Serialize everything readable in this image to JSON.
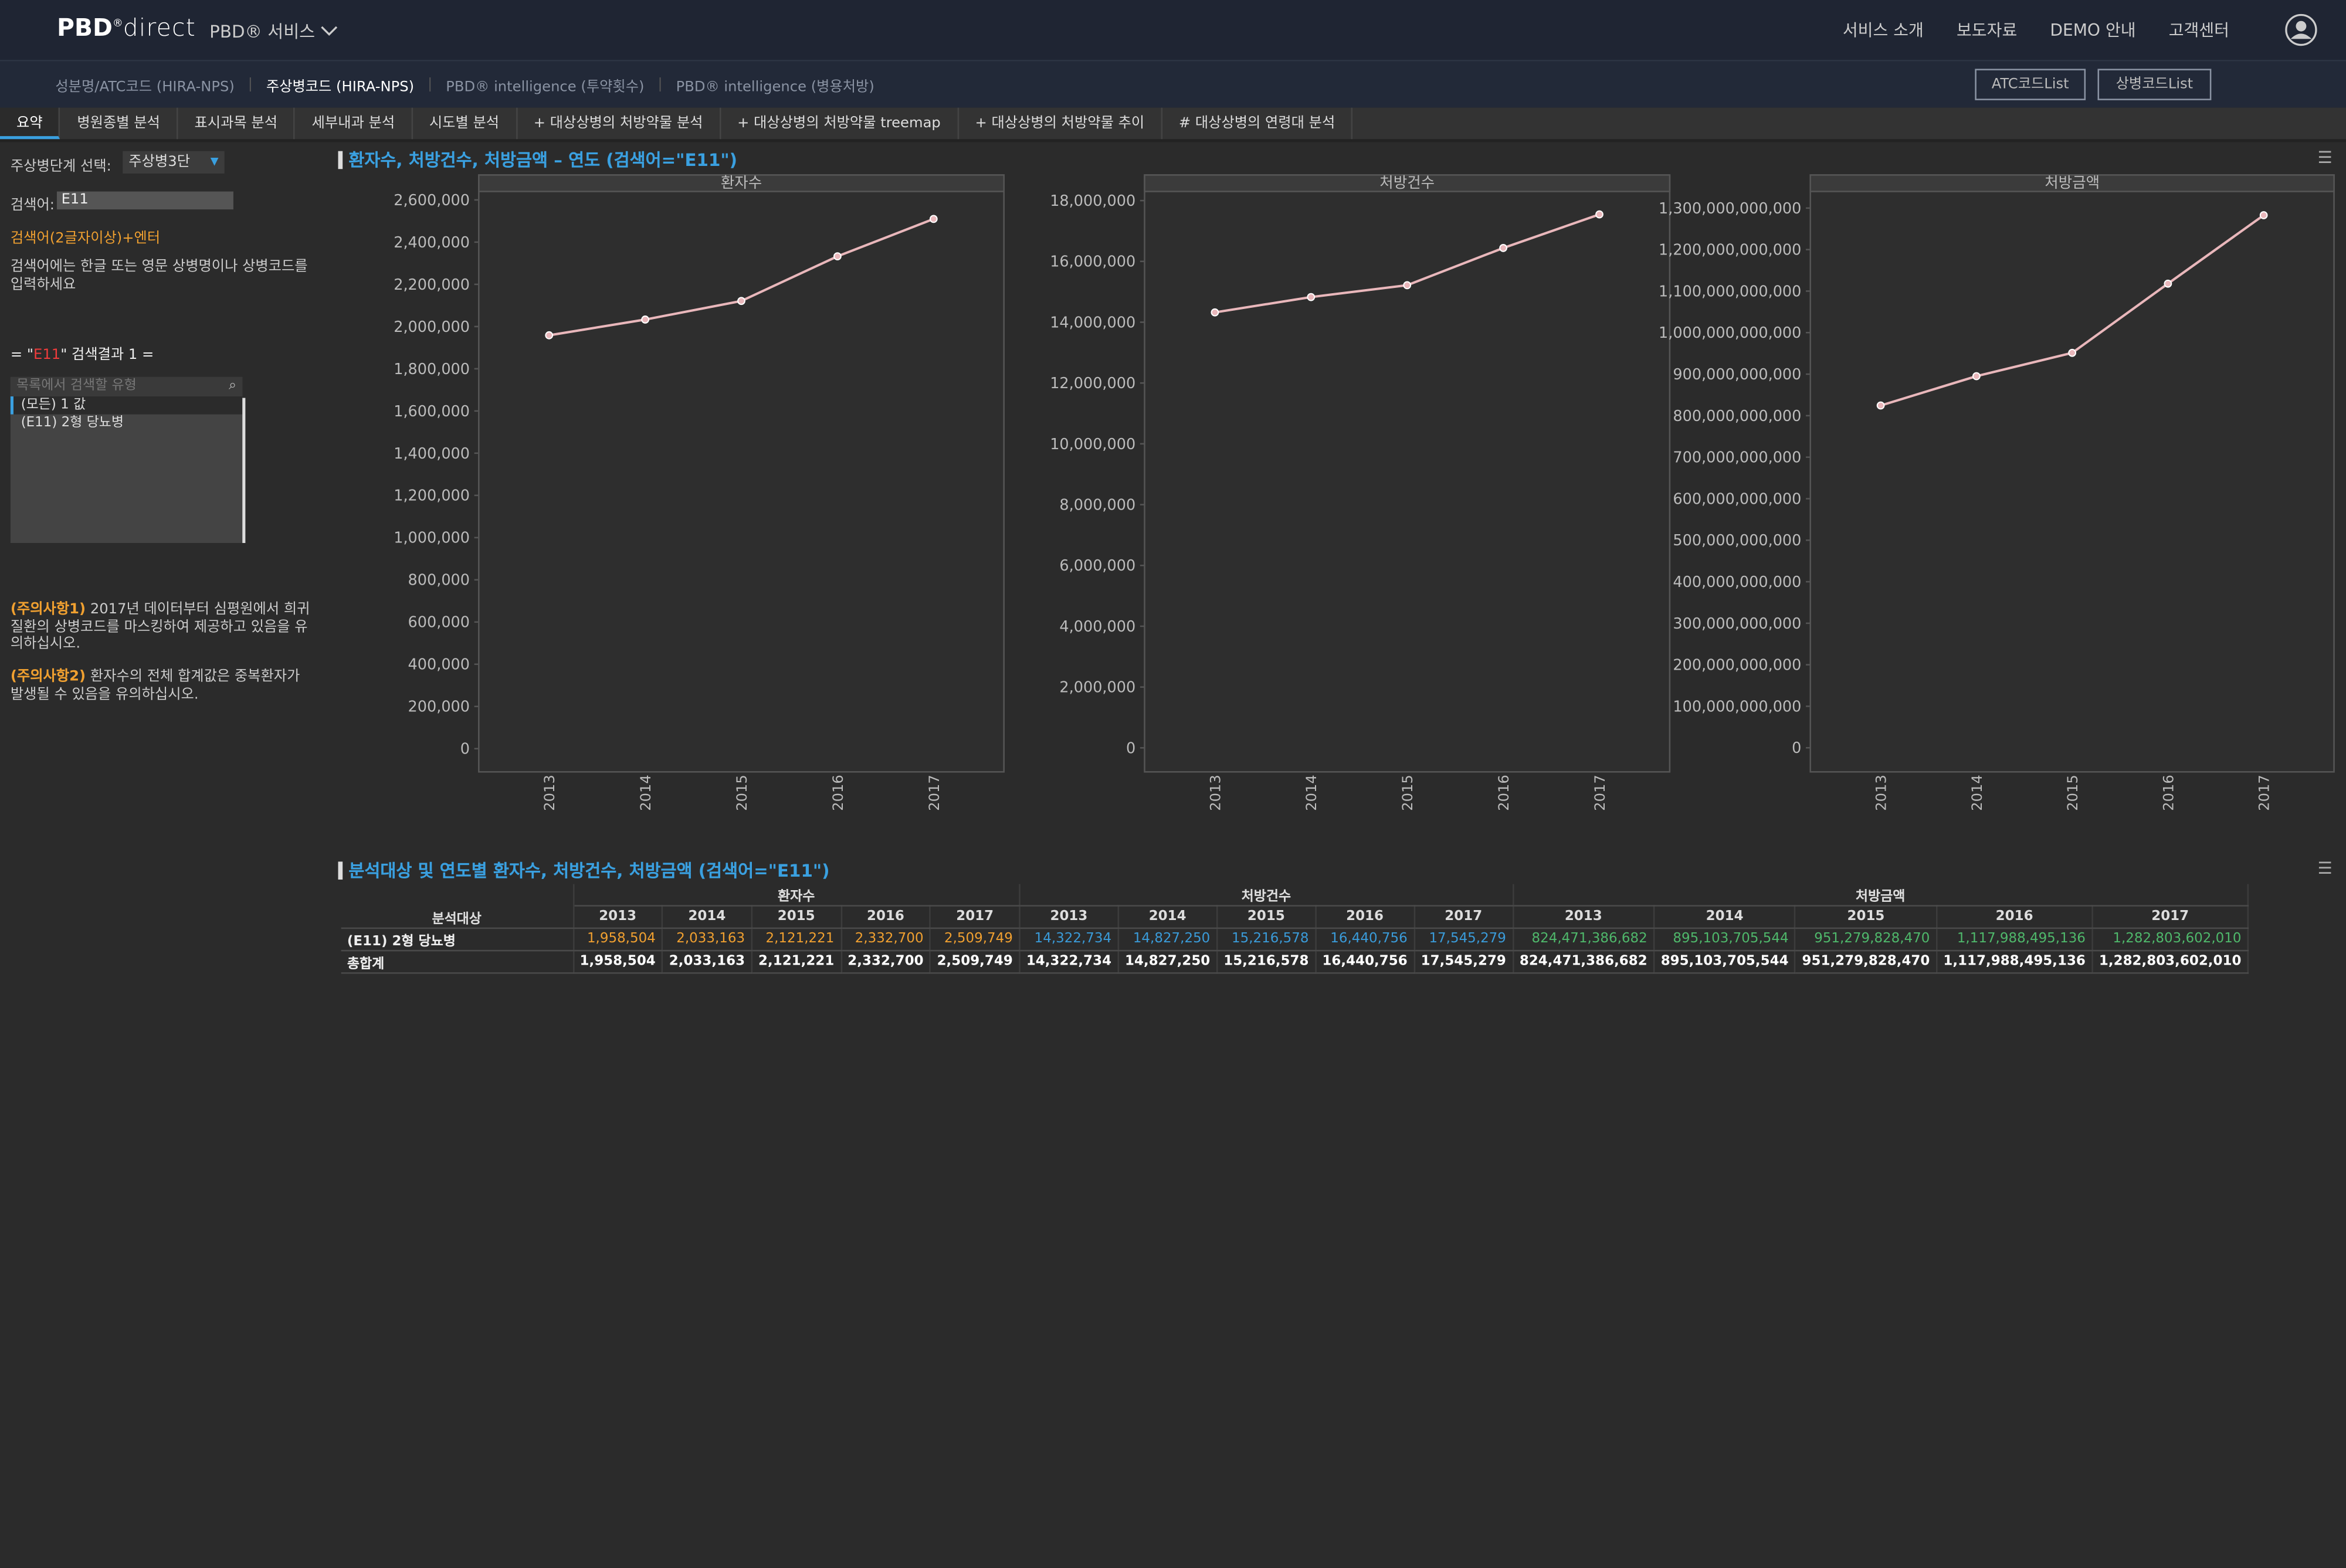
{
  "header": {
    "logo_brand": "PBD",
    "logo_mark": "®",
    "logo_product": "direct",
    "service_menu": "PBD® 서비스",
    "nav": [
      "서비스 소개",
      "보도자료",
      "DEMO 안내",
      "고객센터"
    ]
  },
  "subnav": {
    "items": [
      "성분명/ATC코드 (HIRA-NPS)",
      "주상병코드 (HIRA-NPS)",
      "PBD® intelligence (투약횟수)",
      "PBD® intelligence (병용처방)"
    ],
    "active": 1,
    "buttons": [
      "ATC코드List",
      "상병코드List"
    ]
  },
  "tabs": {
    "items": [
      "요약",
      "병원종별 분석",
      "표시과목 분석",
      "세부내과 분석",
      "시도별 분석",
      "+ 대상상병의 처방약물 분석",
      "+ 대상상병의 처방약물 treemap",
      "+ 대상상병의 처방약물 추이",
      "# 대상상병의 연령대 분석"
    ],
    "active": 0
  },
  "sidebar": {
    "stage_label": "주상병단계 선택:",
    "stage_value": "주상병3단",
    "search_label": "검색어:",
    "search_value": "E11",
    "hint1": "검색어(2글자이상)+엔터",
    "hint2": "검색어에는 한글 또는 영문 상병명이나 상병코드를 입력하세요",
    "result_prefix": "= \"",
    "result_term": "E11",
    "result_suffix": "\" 검색결과 1 =",
    "list_placeholder": "목록에서 검색할 유형",
    "list_items": [
      "(모든) 1 값",
      "(E11) 2형 당뇨병"
    ],
    "notes": [
      {
        "tag": "(주의사항1)",
        "text": "2017년 데이터부터 심평원에서 희귀질환의 상병코드를 마스킹하여 제공하고 있음을 유의하십시오."
      },
      {
        "tag": "(주의사항2)",
        "text": "환자수의 전체 합계값은 중복환자가 발생될 수 있음을 유의하십시오."
      }
    ]
  },
  "charts_title": "환자수, 처방건수, 처방금액 – 연도 (검색어=\"E11\")",
  "table_title": "분석대상 및 연도별 환자수, 처방건수, 처방금액 (검색어=\"E11\")",
  "chart_data": [
    {
      "type": "line",
      "title": "환자수",
      "categories": [
        "2013",
        "2014",
        "2015",
        "2016",
        "2017"
      ],
      "values": [
        1958504,
        2033163,
        2121221,
        2332700,
        2509749
      ],
      "color": "#e9b7bb",
      "ylim": [
        -110000,
        2640000
      ],
      "yticks": [
        0,
        {
          "value": 200000,
          "label": "200,000"
        },
        {
          "value": 400000,
          "label": "400,000"
        },
        {
          "value": 600000,
          "label": "600,000"
        },
        {
          "value": 800000,
          "label": "800,000"
        },
        {
          "value": 1000000,
          "label": "1,000,000"
        },
        {
          "value": 1200000,
          "label": "1,200,000"
        },
        {
          "value": 1400000,
          "label": "1,400,000"
        },
        {
          "value": 1600000,
          "label": "1,600,000"
        },
        {
          "value": 1800000,
          "label": "1,800,000"
        },
        {
          "value": 2000000,
          "label": "2,000,000"
        },
        {
          "value": 2200000,
          "label": "2,200,000"
        },
        {
          "value": 2400000,
          "label": "2,400,000"
        },
        {
          "value": 2600000,
          "label": "2,600,000"
        }
      ]
    },
    {
      "type": "line",
      "title": "처방건수",
      "categories": [
        "2013",
        "2014",
        "2015",
        "2016",
        "2017"
      ],
      "values": [
        14322734,
        14827250,
        15216578,
        16440756,
        17545279
      ],
      "color": "#e9b7bb",
      "ylim": [
        -790000,
        18300000
      ],
      "yticks": [
        0,
        {
          "value": 2000000,
          "label": "2,000,000"
        },
        {
          "value": 4000000,
          "label": "4,000,000"
        },
        {
          "value": 6000000,
          "label": "6,000,000"
        },
        {
          "value": 8000000,
          "label": "8,000,000"
        },
        {
          "value": 10000000,
          "label": "10,000,000"
        },
        {
          "value": 12000000,
          "label": "12,000,000"
        },
        {
          "value": 14000000,
          "label": "14,000,000"
        },
        {
          "value": 16000000,
          "label": "16,000,000"
        },
        {
          "value": 18000000,
          "label": "18,000,000"
        }
      ]
    },
    {
      "type": "line",
      "title": "처방금액",
      "categories": [
        "2013",
        "2014",
        "2015",
        "2016",
        "2017"
      ],
      "values": [
        824471386682,
        895103705544,
        951279828470,
        1117988495136,
        1282803602010
      ],
      "color": "#e9b7bb",
      "ylim": [
        -58000000000,
        1340000000000
      ],
      "yticks": [
        0,
        {
          "value": 100000000000,
          "label": "100,000,000,000"
        },
        {
          "value": 200000000000,
          "label": "200,000,000,000"
        },
        {
          "value": 300000000000,
          "label": "300,000,000,000"
        },
        {
          "value": 400000000000,
          "label": "400,000,000,000"
        },
        {
          "value": 500000000000,
          "label": "500,000,000,000"
        },
        {
          "value": 600000000000,
          "label": "600,000,000,000"
        },
        {
          "value": 700000000000,
          "label": "700,000,000,000"
        },
        {
          "value": 800000000000,
          "label": "800,000,000,000"
        },
        {
          "value": 900000000000,
          "label": "900,000,000,000"
        },
        {
          "value": 1000000000000,
          "label": "1,000,000,000,000"
        },
        {
          "value": 1100000000000,
          "label": "1,100,000,000,000"
        },
        {
          "value": 1200000000000,
          "label": "1,200,000,000,000"
        },
        {
          "value": 1300000000000,
          "label": "1,300,000,000,000"
        }
      ]
    }
  ],
  "table": {
    "row_header": "분석대상",
    "groups": [
      "환자수",
      "처방건수",
      "처방금액"
    ],
    "group_colors": [
      "#f0a030",
      "#3a9bd9",
      "#4fb86b"
    ],
    "years": [
      "2013",
      "2014",
      "2015",
      "2016",
      "2017"
    ],
    "rows": [
      {
        "label": "(E11) 2형 당뇨병",
        "cells": [
          "1,958,504",
          "2,033,163",
          "2,121,221",
          "2,332,700",
          "2,509,749",
          "14,322,734",
          "14,827,250",
          "15,216,578",
          "16,440,756",
          "17,545,279",
          "824,471,386,682",
          "895,103,705,544",
          "951,279,828,470",
          "1,117,988,495,136",
          "1,282,803,602,010"
        ]
      },
      {
        "label": "총합계",
        "cells": [
          "1,958,504",
          "2,033,163",
          "2,121,221",
          "2,332,700",
          "2,509,749",
          "14,322,734",
          "14,827,250",
          "15,216,578",
          "16,440,756",
          "17,545,279",
          "824,471,386,682",
          "895,103,705,544",
          "951,279,828,470",
          "1,117,988,495,136",
          "1,282,803,602,010"
        ]
      }
    ]
  }
}
